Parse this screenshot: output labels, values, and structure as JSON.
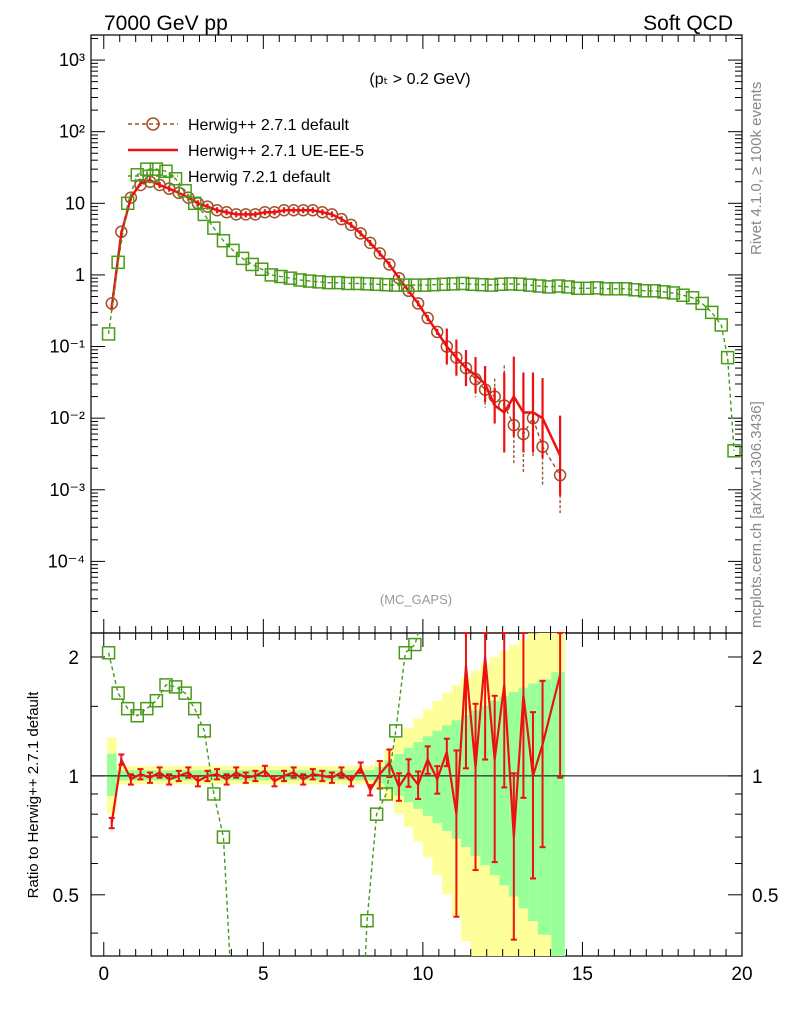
{
  "header": {
    "left": "7000 GeV pp",
    "right": "Soft QCD"
  },
  "side_labels": {
    "rivet": "Rivet 4.1.0, ≥ 100k events",
    "mcplots": "mcplots.cern.ch [arXiv:1306.3436]"
  },
  "cut_label": "(pₜ > 0.2 GeV)",
  "analysis_label": "(MC_GAPS)",
  "legend": [
    {
      "label": "Herwig++ 2.7.1 default",
      "color": "#a0522d",
      "marker": "circle",
      "dash": true
    },
    {
      "label": "Herwig++ 2.7.1 UE-EE-5",
      "color": "#ee1111",
      "marker": "none",
      "dash": false
    },
    {
      "label": "Herwig 7.2.1 default",
      "color": "#4a9a1a",
      "marker": "square",
      "dash": true
    }
  ],
  "ratio_ylabel": "Ratio to Herwig++ 2.7.1 default",
  "colors": {
    "band_yellow": "#ffff99",
    "band_green": "#99ff99"
  },
  "chart_data": {
    "type": "line",
    "xlim": [
      -0.4,
      20
    ],
    "main_ylim_log10": [
      -5,
      3.35
    ],
    "ratio_ylim": [
      0.35,
      2.3
    ],
    "x_ticks": [
      "0",
      "5",
      "10",
      "15",
      "20"
    ],
    "main_y_ticks": [
      "10⁻⁴",
      "10⁻³",
      "10⁻²",
      "10⁻¹",
      "1",
      "10",
      "10²",
      "10³"
    ],
    "ratio_y_ticks": [
      "0.5",
      "1",
      "2"
    ],
    "series": [
      {
        "name": "Herwig++ 2.7.1 default",
        "x": [
          0.25,
          0.55,
          0.85,
          1.15,
          1.45,
          1.75,
          2.05,
          2.35,
          2.65,
          2.95,
          3.25,
          3.55,
          3.85,
          4.15,
          4.45,
          4.75,
          5.05,
          5.35,
          5.65,
          5.95,
          6.25,
          6.55,
          6.85,
          7.15,
          7.45,
          7.75,
          8.05,
          8.35,
          8.65,
          8.95,
          9.25,
          9.55,
          9.85,
          10.15,
          10.45,
          10.75,
          11.05,
          11.35,
          11.65,
          11.95,
          12.25,
          12.55,
          12.85,
          13.15,
          13.45,
          13.75,
          14.3
        ],
        "y": [
          0.4,
          4,
          12,
          18,
          20,
          18,
          16,
          14,
          12,
          10,
          9,
          8,
          7.5,
          7,
          7,
          7,
          7.5,
          7.5,
          8,
          8,
          8,
          8,
          7.5,
          7,
          6,
          5,
          3.8,
          2.8,
          2,
          1.4,
          0.9,
          0.6,
          0.4,
          0.25,
          0.16,
          0.1,
          0.07,
          0.05,
          0.035,
          0.025,
          0.02,
          0.015,
          0.008,
          0.006,
          0.01,
          0.004,
          0.0016
        ]
      },
      {
        "name": "Herwig++ 2.7.1 UE-EE-5",
        "x": [
          0.25,
          0.55,
          0.85,
          1.15,
          1.45,
          1.75,
          2.05,
          2.35,
          2.65,
          2.95,
          3.25,
          3.55,
          3.85,
          4.15,
          4.45,
          4.75,
          5.05,
          5.35,
          5.65,
          5.95,
          6.25,
          6.55,
          6.85,
          7.15,
          7.45,
          7.75,
          8.05,
          8.35,
          8.65,
          8.95,
          9.25,
          9.55,
          9.85,
          10.15,
          10.45,
          10.75,
          11.05,
          11.35,
          11.65,
          11.95,
          12.25,
          12.55,
          12.85,
          13.15,
          13.45,
          13.75,
          14.3
        ],
        "y": [
          0.35,
          3.8,
          12,
          19,
          21,
          18,
          16,
          14,
          12,
          10,
          9,
          8,
          7.5,
          7,
          7,
          7,
          7.5,
          7.5,
          8,
          8,
          8,
          8,
          7.5,
          7,
          6,
          5,
          3.8,
          2.8,
          2,
          1.4,
          0.9,
          0.6,
          0.4,
          0.25,
          0.16,
          0.1,
          0.07,
          0.05,
          0.04,
          0.03,
          0.015,
          0.012,
          0.02,
          0.012,
          0.012,
          0.01,
          0.003
        ]
      },
      {
        "name": "Herwig 7.2.1 default",
        "x": [
          0.15,
          0.45,
          0.75,
          1.05,
          1.35,
          1.65,
          1.95,
          2.25,
          2.55,
          2.85,
          3.15,
          3.45,
          3.75,
          4.05,
          4.35,
          4.65,
          4.95,
          5.25,
          5.55,
          5.85,
          6.15,
          6.45,
          6.75,
          7.05,
          7.35,
          7.65,
          7.95,
          8.25,
          8.55,
          8.85,
          9.15,
          9.45,
          9.75,
          10.05,
          10.35,
          10.65,
          10.95,
          11.25,
          11.55,
          11.85,
          12.15,
          12.45,
          12.75,
          13.05,
          13.35,
          13.65,
          13.95,
          14.25,
          14.55,
          14.85,
          15.15,
          15.45,
          15.75,
          16.05,
          16.35,
          16.65,
          16.95,
          17.25,
          17.55,
          17.85,
          18.15,
          18.45,
          18.75,
          19.05,
          19.35,
          19.55,
          19.75
        ],
        "y": [
          0.15,
          1.5,
          10,
          25,
          30,
          30,
          28,
          22,
          15,
          10,
          7,
          4.5,
          3,
          2.2,
          1.7,
          1.4,
          1.2,
          1.0,
          0.95,
          0.9,
          0.85,
          0.82,
          0.8,
          0.78,
          0.78,
          0.76,
          0.76,
          0.75,
          0.74,
          0.73,
          0.72,
          0.72,
          0.72,
          0.72,
          0.73,
          0.74,
          0.75,
          0.76,
          0.74,
          0.73,
          0.72,
          0.74,
          0.75,
          0.74,
          0.72,
          0.7,
          0.68,
          0.7,
          0.68,
          0.65,
          0.65,
          0.66,
          0.64,
          0.64,
          0.64,
          0.62,
          0.6,
          0.6,
          0.58,
          0.56,
          0.52,
          0.48,
          0.4,
          0.3,
          0.2,
          0.07,
          0.0035
        ]
      }
    ],
    "ratio_series": [
      {
        "name": "Herwig++ 2.7.1 UE-EE-5",
        "x": [
          0.25,
          0.55,
          0.85,
          1.15,
          1.45,
          1.75,
          2.05,
          2.35,
          2.65,
          2.95,
          3.25,
          3.55,
          3.85,
          4.15,
          4.45,
          4.75,
          5.05,
          5.35,
          5.65,
          5.95,
          6.25,
          6.55,
          6.85,
          7.15,
          7.45,
          7.75,
          8.05,
          8.35,
          8.65,
          8.95,
          9.25,
          9.55,
          9.85,
          10.15,
          10.45,
          10.75,
          11.05,
          11.35,
          11.65,
          11.95,
          12.25,
          12.55,
          12.85,
          13.15,
          13.45,
          13.75,
          14.3
        ],
        "y": [
          0.76,
          1.1,
          0.98,
          1.01,
          0.99,
          1.02,
          0.98,
          1.0,
          1.02,
          0.97,
          1.0,
          1.01,
          0.98,
          1.02,
          0.99,
          1.0,
          1.03,
          0.97,
          1.0,
          1.02,
          0.98,
          1.01,
          1.0,
          0.99,
          1.02,
          0.97,
          1.05,
          0.92,
          1.01,
          1.08,
          0.94,
          1.02,
          0.95,
          1.1,
          0.98,
          1.15,
          0.8,
          1.9,
          1.05,
          2.0,
          1.1,
          1.7,
          0.7,
          1.6,
          1.0,
          1.2,
          1.8
        ]
      },
      {
        "name": "Herwig 7.2.1 default",
        "x": [
          0.15,
          0.45,
          0.75,
          1.05,
          1.35,
          1.65,
          1.95,
          2.25,
          2.55,
          2.85,
          3.15,
          3.45,
          3.75,
          8.25,
          8.55,
          8.85,
          9.15,
          9.45,
          9.75
        ],
        "y": [
          2.05,
          1.62,
          1.48,
          1.42,
          1.48,
          1.55,
          1.7,
          1.68,
          1.62,
          1.48,
          1.3,
          0.9,
          0.7,
          0.43,
          0.8,
          0.9,
          1.3,
          2.05,
          2.15
        ]
      }
    ]
  }
}
